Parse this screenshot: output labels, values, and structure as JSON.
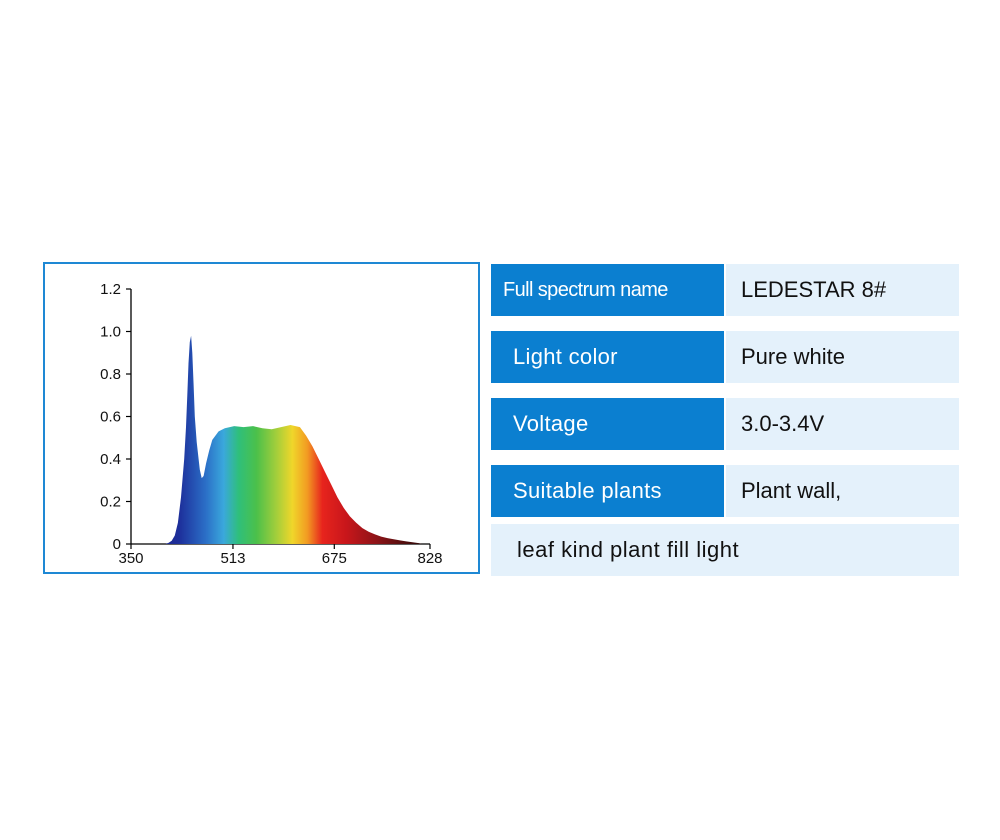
{
  "chart_data": {
    "type": "area",
    "title": "",
    "xlabel": "",
    "ylabel": "",
    "xlim": [
      350,
      828
    ],
    "ylim": [
      0,
      1.2
    ],
    "x_ticks": [
      "350",
      "513",
      "675",
      "828"
    ],
    "y_ticks": [
      "0",
      "0.2",
      "0.4",
      "0.6",
      "0.8",
      "1.0",
      "1.2"
    ],
    "series": [
      {
        "x": [
          405,
          410,
          415,
          420,
          425,
          430,
          435,
          438,
          440,
          442,
          444,
          446,
          448,
          450,
          452,
          455,
          458,
          460,
          463,
          466,
          470,
          475,
          480,
          490,
          500,
          515,
          530,
          545,
          560,
          575,
          590,
          605,
          620,
          630,
          640,
          650,
          660,
          670,
          680,
          690,
          700,
          710,
          720,
          730,
          740,
          750,
          760,
          770,
          780,
          790,
          800,
          810,
          815
        ],
        "values": [
          0,
          0.005,
          0.015,
          0.04,
          0.1,
          0.22,
          0.4,
          0.55,
          0.7,
          0.85,
          0.95,
          0.98,
          0.9,
          0.75,
          0.6,
          0.48,
          0.4,
          0.35,
          0.31,
          0.32,
          0.38,
          0.44,
          0.49,
          0.53,
          0.545,
          0.555,
          0.55,
          0.555,
          0.545,
          0.54,
          0.55,
          0.56,
          0.55,
          0.51,
          0.46,
          0.4,
          0.34,
          0.28,
          0.22,
          0.17,
          0.13,
          0.1,
          0.075,
          0.058,
          0.045,
          0.035,
          0.028,
          0.022,
          0.017,
          0.012,
          0.008,
          0.004,
          0
        ]
      }
    ]
  },
  "colors": {
    "frame": "#1e88d4",
    "key_bg": "#0b7fd0",
    "value_bg": "#e4f1fb"
  },
  "table": {
    "rows": [
      {
        "key": "Full spectrum name",
        "value": "LEDESTAR 8#"
      },
      {
        "key": "Light color",
        "value": "Pure white"
      },
      {
        "key": "Voltage",
        "value": "3.0-3.4V"
      },
      {
        "key": "Suitable plants",
        "value": "Plant wall,"
      }
    ],
    "continuation": "leaf kind plant fill light"
  }
}
